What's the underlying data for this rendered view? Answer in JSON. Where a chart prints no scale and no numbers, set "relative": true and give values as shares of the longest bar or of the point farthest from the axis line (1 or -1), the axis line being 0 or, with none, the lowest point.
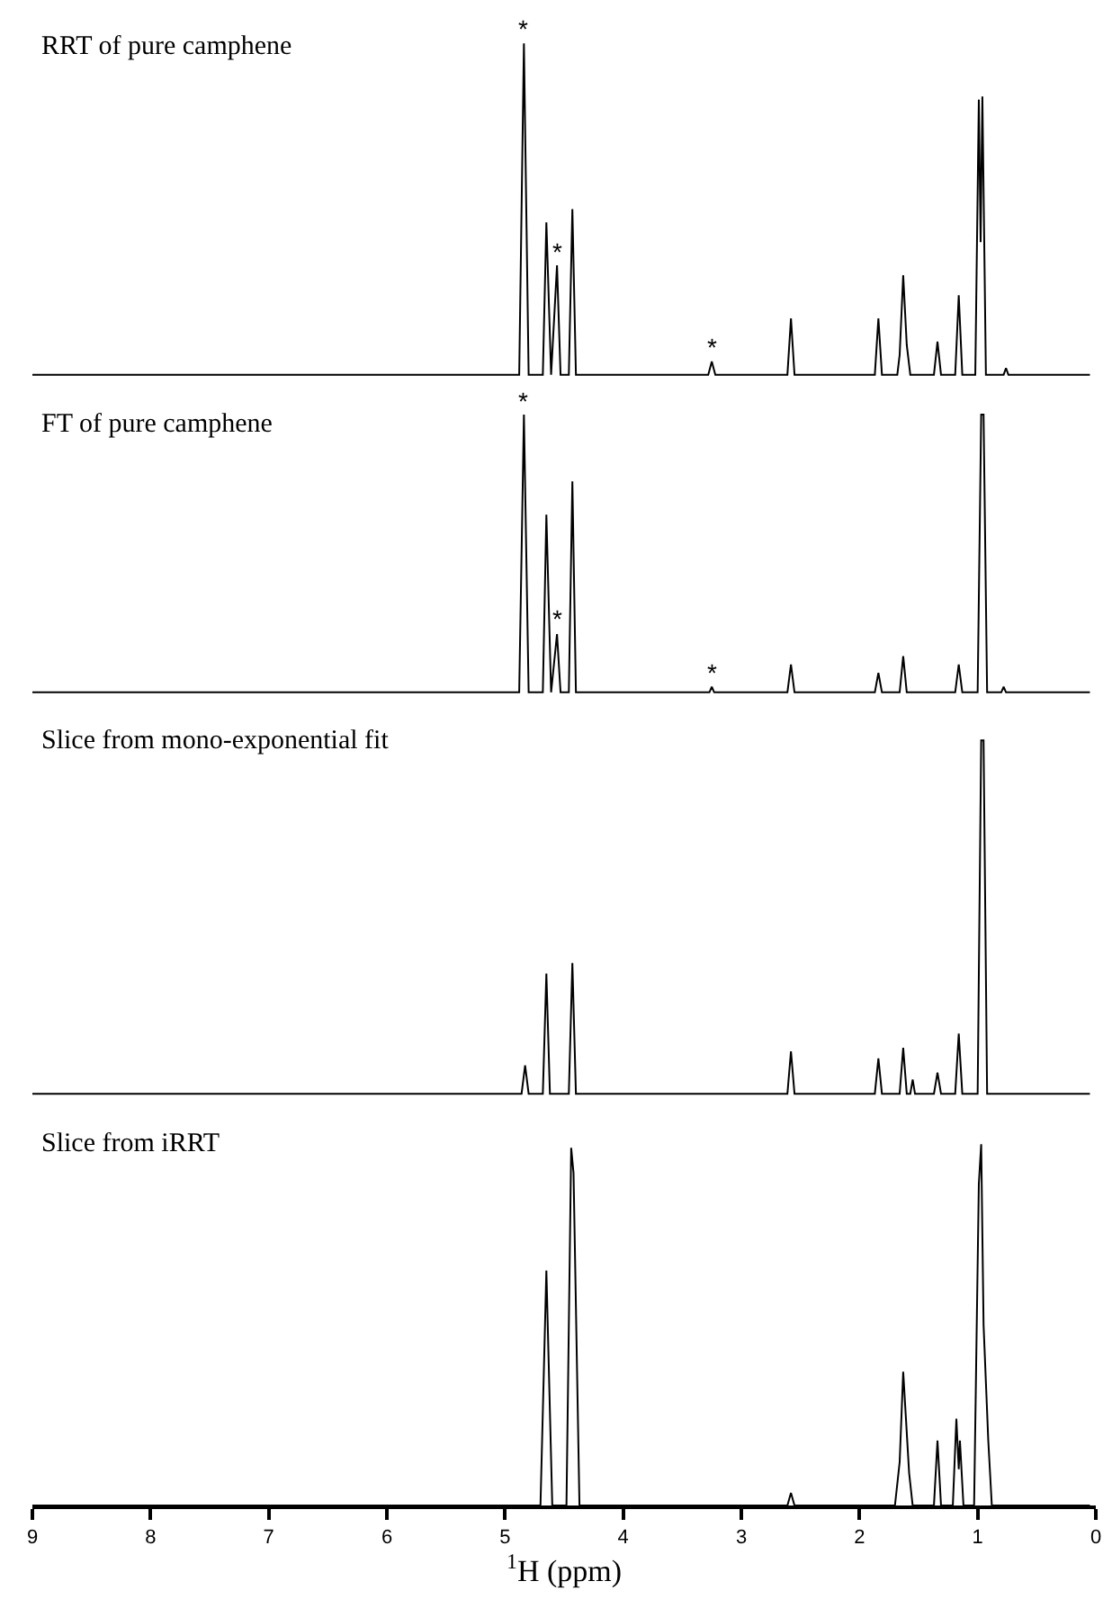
{
  "chart_data": [
    {
      "type": "line",
      "title": "RRT of pure camphene",
      "relative": true,
      "xlim": [
        9,
        0
      ],
      "tick_labels": false,
      "series": [
        {
          "color": "#000000",
          "x": [
            9,
            4.88,
            4.84,
            4.8,
            4.68,
            4.65,
            4.61,
            4.56,
            4.53,
            4.46,
            4.43,
            4.4,
            3.28,
            3.25,
            3.22,
            2.61,
            2.58,
            2.55,
            1.87,
            1.84,
            1.81,
            1.68,
            1.66,
            1.63,
            1.6,
            1.57,
            1.37,
            1.34,
            1.31,
            1.19,
            1.16,
            1.13,
            1.02,
            0.99,
            0.975,
            0.96,
            0.93,
            0.78,
            0.76,
            0.74,
            0.05
          ],
          "values": [
            0,
            0,
            1,
            0,
            0,
            0.46,
            0,
            0.33,
            0,
            0,
            0.5,
            0,
            0,
            0.04,
            0,
            0,
            0.17,
            0,
            0,
            0.17,
            0,
            0,
            0.06,
            0.3,
            0.09,
            0,
            0,
            0.1,
            0,
            0,
            0.24,
            0,
            0,
            0.83,
            0.4,
            0.84,
            0,
            0,
            0.02,
            0,
            0
          ]
        }
      ],
      "annotations": [
        {
          "text": "*",
          "x": 4.84,
          "y": 1
        },
        {
          "text": "*",
          "x": 4.56,
          "y": 0.33
        },
        {
          "text": "*",
          "x": 3.25,
          "y": 0.04
        }
      ]
    },
    {
      "type": "line",
      "title": "FT of pure camphene",
      "relative": true,
      "xlim": [
        9,
        0
      ],
      "tick_labels": false,
      "series": [
        {
          "color": "#000000",
          "x": [
            9,
            4.88,
            4.84,
            4.8,
            4.68,
            4.65,
            4.61,
            4.56,
            4.53,
            4.46,
            4.43,
            4.4,
            3.27,
            3.25,
            3.23,
            2.61,
            2.58,
            2.55,
            1.87,
            1.84,
            1.81,
            1.66,
            1.63,
            1.6,
            1.19,
            1.16,
            1.13,
            1.0,
            0.97,
            0.95,
            0.92,
            0.8,
            0.78,
            0.76,
            0.05
          ],
          "values": [
            0,
            0,
            1,
            0,
            0,
            0.64,
            0,
            0.21,
            0,
            0,
            0.76,
            0,
            0,
            0.02,
            0,
            0,
            0.1,
            0,
            0,
            0.07,
            0,
            0,
            0.13,
            0,
            0,
            0.1,
            0,
            0,
            1,
            1,
            0,
            0,
            0.02,
            0,
            0
          ]
        }
      ],
      "annotations": [
        {
          "text": "*",
          "x": 4.84,
          "y": 1
        },
        {
          "text": "*",
          "x": 4.56,
          "y": 0.21
        },
        {
          "text": "*",
          "x": 3.25,
          "y": 0.02
        }
      ]
    },
    {
      "type": "line",
      "title": "Slice from mono-exponential fit",
      "relative": true,
      "xlim": [
        9,
        0
      ],
      "tick_labels": false,
      "series": [
        {
          "color": "#000000",
          "x": [
            9,
            4.86,
            4.83,
            4.8,
            4.68,
            4.65,
            4.62,
            4.46,
            4.43,
            4.4,
            2.61,
            2.58,
            2.55,
            1.87,
            1.84,
            1.81,
            1.66,
            1.63,
            1.6,
            1.57,
            1.55,
            1.53,
            1.37,
            1.34,
            1.31,
            1.19,
            1.16,
            1.13,
            1.0,
            0.97,
            0.95,
            0.92,
            0.05
          ],
          "values": [
            0,
            0,
            0.08,
            0,
            0,
            0.34,
            0,
            0,
            0.37,
            0,
            0,
            0.12,
            0,
            0,
            0.1,
            0,
            0,
            0.13,
            0,
            0,
            0.04,
            0,
            0,
            0.06,
            0,
            0,
            0.17,
            0,
            0,
            1,
            1,
            0,
            0
          ]
        }
      ]
    },
    {
      "type": "line",
      "title": "Slice from iRRT",
      "relative": true,
      "xlim": [
        9,
        0
      ],
      "tick_labels": "x",
      "xticks": [
        0,
        1,
        2,
        3,
        4,
        5,
        6,
        7,
        8,
        9
      ],
      "xlabel": "$^{1}$H (ppm)",
      "series": [
        {
          "color": "#000000",
          "x": [
            9,
            4.7,
            4.65,
            4.6,
            4.48,
            4.44,
            4.42,
            4.37,
            2.61,
            2.58,
            2.55,
            1.7,
            1.66,
            1.63,
            1.58,
            1.55,
            1.37,
            1.34,
            1.31,
            1.21,
            1.18,
            1.16,
            1.15,
            1.12,
            1.03,
            0.99,
            0.97,
            0.95,
            0.91,
            0.88,
            0.05
          ],
          "values": [
            0,
            0,
            0.65,
            0,
            0,
            0.99,
            0.92,
            0,
            0,
            0.035,
            0,
            0,
            0.12,
            0.37,
            0.09,
            0,
            0,
            0.18,
            0,
            0,
            0.24,
            0.1,
            0.18,
            0,
            0,
            0.89,
            1,
            0.5,
            0.18,
            0,
            0
          ]
        }
      ]
    }
  ]
}
